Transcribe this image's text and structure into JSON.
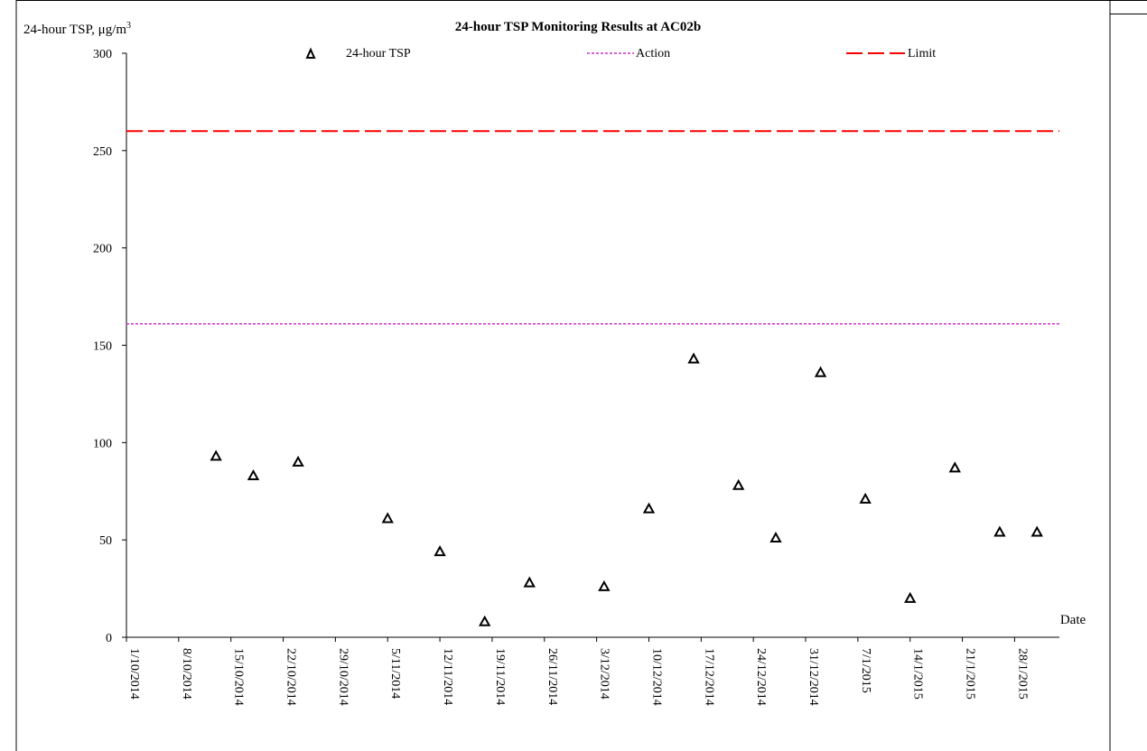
{
  "chart_data": {
    "type": "scatter",
    "title": "24-hour TSP Monitoring Results at AC02b",
    "ylabel": "24-hour TSP, μg/m",
    "ylabel_superscript": "3",
    "xlabel": "Date",
    "ylim": [
      0,
      300
    ],
    "yticks": [
      "0",
      "50",
      "100",
      "150",
      "200",
      "250",
      "300"
    ],
    "xlim": [
      "1/10/2014",
      "3/2/2015"
    ],
    "xticks": [
      "1/10/2014",
      "8/10/2014",
      "15/10/2014",
      "22/10/2014",
      "29/10/2014",
      "5/11/2014",
      "12/11/2014",
      "19/11/2014",
      "26/11/2014",
      "3/12/2014",
      "10/12/2014",
      "17/12/2014",
      "24/12/2014",
      "31/12/2014",
      "7/1/2015",
      "14/1/2015",
      "21/1/2015",
      "28/1/2015"
    ],
    "grid": false,
    "legend": [
      {
        "label": "24-hour TSP",
        "marker": "triangle",
        "color": "#000000"
      },
      {
        "label": "Action",
        "style": "dotted",
        "color": "#cc33cc"
      },
      {
        "label": "Limit",
        "style": "dashed",
        "color": "#ff0000"
      }
    ],
    "reference_lines": [
      {
        "name": "Action",
        "value": 161,
        "color": "#cc33cc"
      },
      {
        "name": "Limit",
        "value": 260,
        "color": "#ff0000"
      }
    ],
    "series": [
      {
        "name": "24-hour TSP",
        "points": [
          {
            "x": "13/10/2014",
            "y": 93
          },
          {
            "x": "18/10/2014",
            "y": 83
          },
          {
            "x": "24/10/2014",
            "y": 90
          },
          {
            "x": "5/11/2014",
            "y": 61
          },
          {
            "x": "12/11/2014",
            "y": 44
          },
          {
            "x": "18/11/2014",
            "y": 8
          },
          {
            "x": "24/11/2014",
            "y": 28
          },
          {
            "x": "4/12/2014",
            "y": 26
          },
          {
            "x": "10/12/2014",
            "y": 66
          },
          {
            "x": "16/12/2014",
            "y": 143
          },
          {
            "x": "22/12/2014",
            "y": 78
          },
          {
            "x": "27/12/2014",
            "y": 51
          },
          {
            "x": "2/1/2015",
            "y": 136
          },
          {
            "x": "8/1/2015",
            "y": 71
          },
          {
            "x": "14/1/2015",
            "y": 20
          },
          {
            "x": "20/1/2015",
            "y": 87
          },
          {
            "x": "26/1/2015",
            "y": 54
          },
          {
            "x": "31/1/2015",
            "y": 54
          }
        ]
      }
    ]
  }
}
